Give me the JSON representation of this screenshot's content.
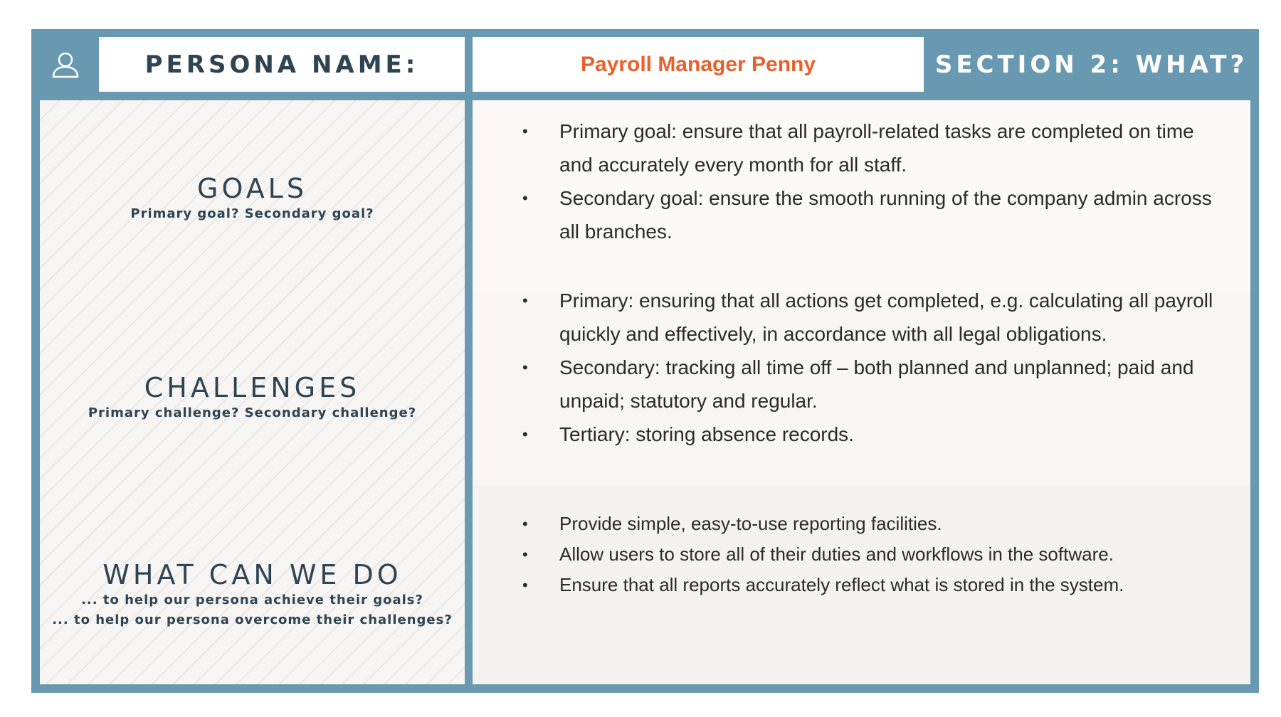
{
  "header": {
    "icon": "user-icon",
    "label": "PERSONA NAME:",
    "persona_name": "Payroll Manager Penny",
    "section_title": "SECTION 2: WHAT?"
  },
  "colors": {
    "frame": "#6899b1",
    "heading_text": "#2f4452",
    "persona_name": "#e8612b"
  },
  "sections": {
    "goals": {
      "heading": "GOALS",
      "prompts": [
        "Primary goal? Secondary goal?"
      ],
      "bullets": [
        "Primary goal: ensure that all payroll-related tasks are completed on time and accurately every month for all staff.",
        "Secondary goal: ensure the smooth running of the company admin across all branches."
      ]
    },
    "challenges": {
      "heading": "CHALLENGES",
      "prompts": [
        "Primary challenge? Secondary challenge?"
      ],
      "bullets": [
        "Primary: ensuring that all actions get completed, e.g. calculating all payroll quickly and effectively, in accordance with all legal obligations.",
        "Secondary: tracking all time off – both planned and unplanned; paid and unpaid; statutory and regular.",
        "Tertiary: storing absence records."
      ]
    },
    "what_can_we_do": {
      "heading": "WHAT CAN WE DO",
      "prompts": [
        "... to help our persona achieve their goals?",
        "... to help our persona overcome their challenges?"
      ],
      "bullets": [
        "Provide simple, easy-to-use reporting facilities.",
        "Allow users to store all of their duties and workflows in the software.",
        "Ensure that all reports accurately reflect what is stored in the system."
      ]
    }
  }
}
